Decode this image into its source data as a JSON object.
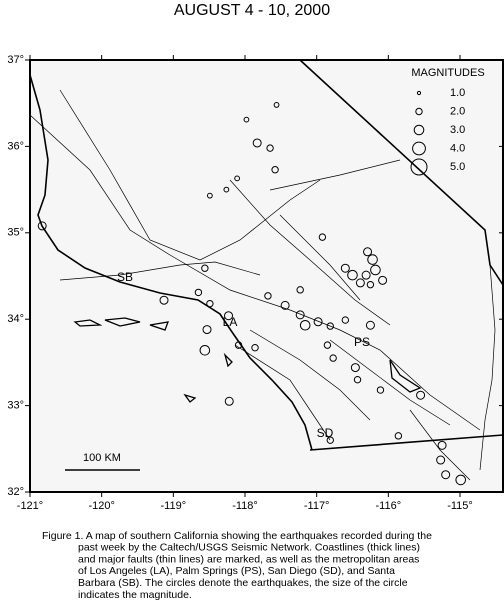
{
  "chart_data": {
    "type": "scatter",
    "title": "AUGUST 4 - 10, 2000",
    "xlim": [
      -121,
      -114.4
    ],
    "ylim": [
      32,
      37
    ],
    "xticks": [
      {
        "value": -121,
        "label": "-121°"
      },
      {
        "value": -120,
        "label": "-120°"
      },
      {
        "value": -119,
        "label": "-119°"
      },
      {
        "value": -118,
        "label": "-118°"
      },
      {
        "value": -117,
        "label": "-117°"
      },
      {
        "value": -116,
        "label": "-116°"
      },
      {
        "value": -115,
        "label": "-115°"
      }
    ],
    "yticks": [
      {
        "value": 32,
        "label": "32°"
      },
      {
        "value": 33,
        "label": "33°"
      },
      {
        "value": 34,
        "label": "34°"
      },
      {
        "value": 35,
        "label": "35°"
      },
      {
        "value": 36,
        "label": "36°"
      },
      {
        "value": 37,
        "label": "37°"
      }
    ],
    "x": [
      -120.83,
      -117.98,
      -117.56,
      -117.83,
      -117.65,
      -117.58,
      -118.11,
      -118.26,
      -118.49,
      -116.92,
      -116.6,
      -116.5,
      -116.39,
      -116.29,
      -116.22,
      -116.18,
      -116.08,
      -116.25,
      -119.13,
      -118.65,
      -118.56,
      -118.49,
      -117.68,
      -117.44,
      -117.23,
      -117.16,
      -116.98,
      -116.81,
      -116.6,
      -116.25,
      -118.53,
      -118.56,
      -118.23,
      -118.09,
      -117.86,
      -116.85,
      -116.77,
      -116.46,
      -116.43,
      -116.11,
      -115.55,
      -118.22,
      -116.81,
      -115.86,
      -115.2,
      -114.99,
      -115.25,
      -115.27,
      -117.23,
      -116.31
    ],
    "y": [
      35.08,
      36.31,
      36.48,
      36.04,
      35.98,
      35.73,
      35.63,
      35.5,
      35.43,
      34.95,
      34.59,
      34.51,
      34.42,
      34.78,
      34.69,
      34.57,
      34.45,
      34.4,
      34.22,
      34.31,
      34.59,
      34.18,
      34.27,
      34.16,
      34.05,
      33.93,
      33.97,
      33.92,
      33.99,
      33.93,
      33.88,
      33.64,
      34.04,
      33.7,
      33.67,
      33.7,
      33.55,
      33.44,
      33.3,
      33.18,
      33.12,
      33.05,
      32.6,
      32.65,
      32.2,
      32.14,
      32.54,
      32.37,
      34.34,
      34.51
    ],
    "sizes": [
      2.5,
      1.5,
      1.5,
      2.5,
      2,
      2,
      1.5,
      1.5,
      1.5,
      2,
      2.5,
      3,
      2.5,
      2.5,
      3,
      3,
      2.5,
      2,
      2.5,
      2,
      2,
      2,
      2,
      2.5,
      2.5,
      3,
      2.5,
      2,
      2,
      2.5,
      2.5,
      3,
      2.5,
      2,
      2,
      2,
      2,
      2.5,
      2,
      2,
      2.5,
      2.5,
      2,
      2,
      2.5,
      3,
      2.5,
      2.5,
      2,
      2.5
    ],
    "legend": {
      "title": "MAGNITUDES",
      "values": [
        1,
        2,
        3,
        4,
        5
      ],
      "value_labels": [
        "1.0",
        "2.0",
        "3.0",
        "4.0",
        "5.0"
      ]
    },
    "annotations": [
      "SB",
      "LA",
      "PS",
      "SD"
    ],
    "scale_bar": "100 KM",
    "caption": [
      "Figure 1. A map of southern California showing the earthquakes recorded during the",
      "past week by the Caltech/USGS Seismic Network.  Coastlines (thick lines)",
      "and major faults (thin lines) are marked, as well as the metropolitan areas",
      "of Los Angeles (LA), Palm Springs (PS), San Diego (SD), and Santa",
      "Barbara (SB).  The circles denote the earthquakes, the size of the circle",
      "indicates the magnitude."
    ]
  }
}
